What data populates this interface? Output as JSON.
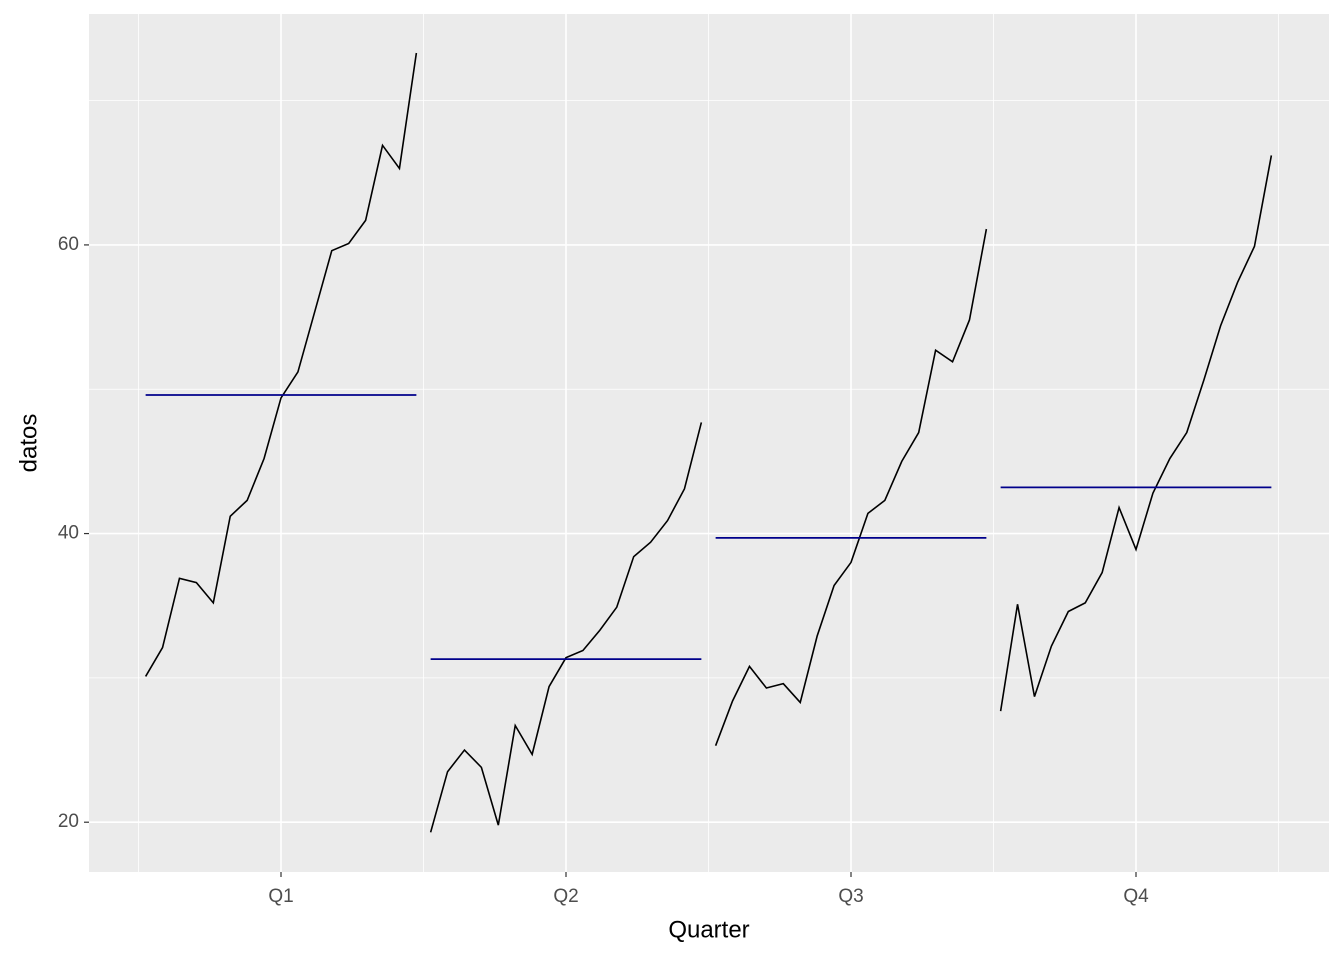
{
  "chart_data": {
    "type": "subseries",
    "x_label": "Quarter",
    "y_label": "datos",
    "categories": [
      "Q1",
      "Q2",
      "Q3",
      "Q4"
    ],
    "values": [
      [
        30.1,
        32.1,
        36.9,
        36.6,
        35.2,
        41.2,
        42.3,
        45.2,
        49.4,
        51.2,
        55.4,
        59.6,
        60.1,
        61.7,
        66.9,
        65.3,
        73.3
      ],
      [
        19.3,
        23.5,
        25.0,
        23.8,
        19.8,
        26.7,
        24.7,
        29.4,
        31.4,
        31.9,
        33.3,
        34.9,
        38.4,
        39.4,
        40.9,
        43.1,
        47.7
      ],
      [
        25.3,
        28.4,
        30.8,
        29.3,
        29.6,
        28.3,
        32.9,
        36.4,
        38.0,
        41.4,
        42.3,
        45.0,
        47.0,
        52.7,
        51.9,
        54.8,
        61.1
      ],
      [
        27.7,
        35.1,
        28.7,
        32.2,
        34.6,
        35.2,
        37.3,
        41.8,
        38.9,
        42.8,
        45.2,
        47.0,
        50.6,
        54.4,
        57.4,
        59.9,
        66.2
      ]
    ],
    "means": [
      49.6,
      31.3,
      39.7,
      43.2
    ],
    "line_color": "#000000",
    "mean_color": "#00008b",
    "ylim": [
      16.55,
      76.0
    ],
    "yticks": [
      20,
      40,
      60
    ],
    "grid": true
  }
}
